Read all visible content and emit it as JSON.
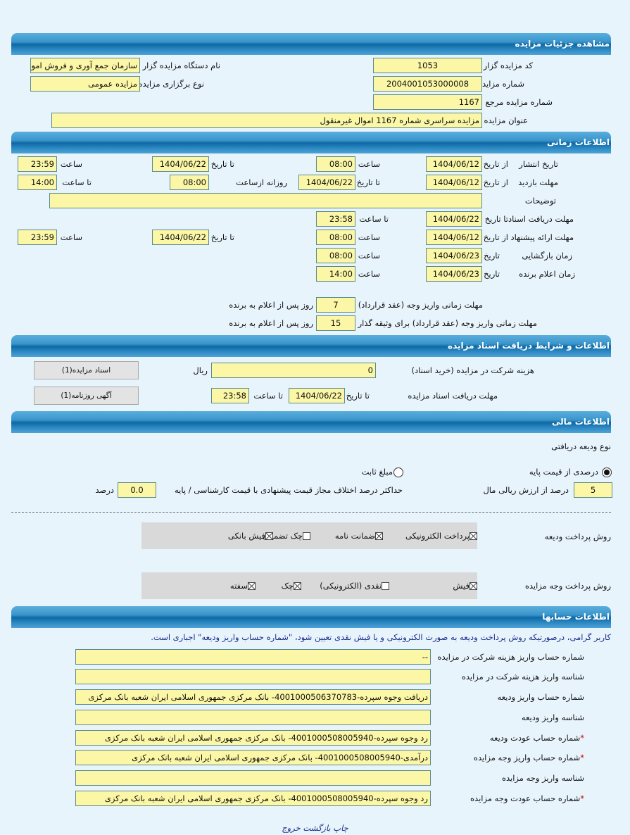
{
  "sections": {
    "details": "مشاهده جزئیات مزایده",
    "time": "اطلاعات زمانی",
    "docs": "اطلاعات و شرایط دریافت اسناد مزایده",
    "financial": "اطلاعات مالی",
    "accounts": "اطلاعات حسابها"
  },
  "details": {
    "code_label": "کد مزایده گزار",
    "code": "1053",
    "org_label": "نام دستگاه مزایده گزار",
    "org": "سازمان جمع آوری و فروش اموال",
    "number_label": "شماره مزایده",
    "number": "2004001053000008",
    "type_label": "نوع برگزاری مزایده",
    "type": "مزایده عمومی",
    "ref_label": "شماره مزایده مرجع",
    "ref": "1167",
    "title_label": "عنوان مزایده",
    "title": "مزایده سراسری شماره 1167 اموال غیرمنقول"
  },
  "time": {
    "from_date": "از تاریخ",
    "to_date": "تا تاریخ",
    "time": "ساعت",
    "to_time": "تا ساعت",
    "date": "تاریخ",
    "daily_from": "روزانه ازساعت",
    "publish": {
      "label": "تاریخ انتشار",
      "from": "1404/06/12",
      "from_time": "08:00",
      "to": "1404/06/22",
      "to_time": "23:59"
    },
    "visit": {
      "label": "مهلت بازدید",
      "from": "1404/06/12",
      "to": "1404/06/22",
      "daily_from": "08:00",
      "to_time": "14:00"
    },
    "desc_label": "توضیحات",
    "desc": "",
    "docs_deadline": {
      "label": "مهلت دریافت اسناد",
      "to": "1404/06/22",
      "to_time": "23:58"
    },
    "offer": {
      "label": "مهلت ارائه پیشنهاد",
      "from": "1404/06/12",
      "from_time": "08:00",
      "to": "1404/06/22",
      "to_time": "23:59"
    },
    "opening": {
      "label": "زمان بازگشایی",
      "date": "1404/06/23",
      "time": "08:00"
    },
    "winner": {
      "label": "زمان اعلام برنده",
      "date": "1404/06/23",
      "time": "14:00"
    },
    "pay_deadline": {
      "label": "مهلت زمانی واریز وجه (عقد قرارداد)",
      "value": "7",
      "suffix": "روز پس از اعلام به برنده"
    },
    "pay_deadline_pledger": {
      "label": "مهلت زمانی واریز وجه (عقد قرارداد) برای وثیقه گذار",
      "value": "15",
      "suffix": "روز پس از اعلام به برنده"
    }
  },
  "docs": {
    "fee_label": "هزینه شرکت در مزایده (خرید اسناد)",
    "fee": "0",
    "currency": "ریال",
    "deadline_label": "مهلت دریافت اسناد مزایده",
    "to_date_label": "تا تاریخ",
    "to_date": "1404/06/22",
    "to_time_label": "تا ساعت",
    "to_time": "23:58",
    "docs_button": "اسناد مزایده(1)",
    "ad_button": "آگهی روزنامه(1)"
  },
  "financial": {
    "deposit_type_label": "نوع ودیعه دریافتی",
    "radio_percent": "درصدی از قیمت پایه",
    "radio_fixed": "مبلغ ثابت",
    "selected": "percent",
    "percent": "5",
    "percent_label": "درصد از ارزش ریالی مال",
    "max_diff_label": "حداکثر درصد اختلاف مجاز قیمت پیشنهادی با قیمت کارشناسی / پایه",
    "max_diff": "0.0",
    "max_diff_unit": "درصد",
    "deposit_methods_label": "روش پرداخت ودیعه",
    "deposit_methods": [
      {
        "label": "پرداخت الکترونیکی",
        "checked": true
      },
      {
        "label": "ضمانت نامه",
        "checked": true
      },
      {
        "label": "چک تضمینی",
        "checked": false
      },
      {
        "label": "فیش بانکی",
        "checked": true
      }
    ],
    "payment_methods_label": "روش پرداخت وجه مزایده",
    "payment_methods": [
      {
        "label": "فیش",
        "checked": true
      },
      {
        "label": "نقدی (الکترونیکی)",
        "checked": false
      },
      {
        "label": "چک",
        "checked": true
      },
      {
        "label": "سفته",
        "checked": true
      }
    ]
  },
  "accounts": {
    "note": "کاربر گرامی، درصورتیکه روش پرداخت ودیعه به صورت الکترونیکی و یا فیش نقدی تعیین شود، \"شماره حساب واریز ودیعه\" اجباری است.",
    "rows": [
      {
        "label": "شماره حساب واریز هزینه شرکت در مزایده",
        "value": "--",
        "required": false
      },
      {
        "label": "شناسه واریز هزینه شرکت در مزایده",
        "value": "",
        "required": false
      },
      {
        "label": "شماره حساب واریز ودیعه",
        "value": "دریافت وجوه سپرده-4001000506370783- بانک مرکزی جمهوری اسلامی ایران شعبه بانک مرکزی",
        "required": false
      },
      {
        "label": "شناسه واریز ودیعه",
        "value": "",
        "required": false
      },
      {
        "label": "شماره حساب عودت ودیعه",
        "value": "رد وجوه سپرده-4001000508005940- بانک مرکزی جمهوری اسلامی ایران شعبه بانک مرکزی",
        "required": true
      },
      {
        "label": "شماره حساب واریز وجه مزایده",
        "value": "درآمدی-4001000508005940- بانک مرکزی جمهوری اسلامی ایران شعبه بانک مرکزی",
        "required": true
      },
      {
        "label": "شناسه واریز وجه مزایده",
        "value": "",
        "required": false
      },
      {
        "label": "شماره حساب عودت وجه مزایده",
        "value": "رد وجوه سپرده-4001000508005940- بانک مرکزی جمهوری اسلامی ایران شعبه بانک مرکزی",
        "required": true
      }
    ]
  },
  "footer": {
    "print": "چاپ",
    "back": "بازگشت",
    "exit": "خروج"
  }
}
